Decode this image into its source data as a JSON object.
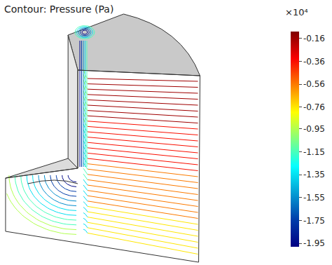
{
  "chart_data": {
    "type": "contour",
    "title": "Contour: Pressure (Pa)",
    "colorbar": {
      "title": "×10⁴",
      "range": [
        -1.98,
        -0.1
      ],
      "ticks": [
        -0.16,
        -0.36,
        -0.56,
        -0.76,
        -0.95,
        -1.15,
        -1.35,
        -1.55,
        -1.75,
        -1.95
      ]
    },
    "tick_labels": false
  }
}
